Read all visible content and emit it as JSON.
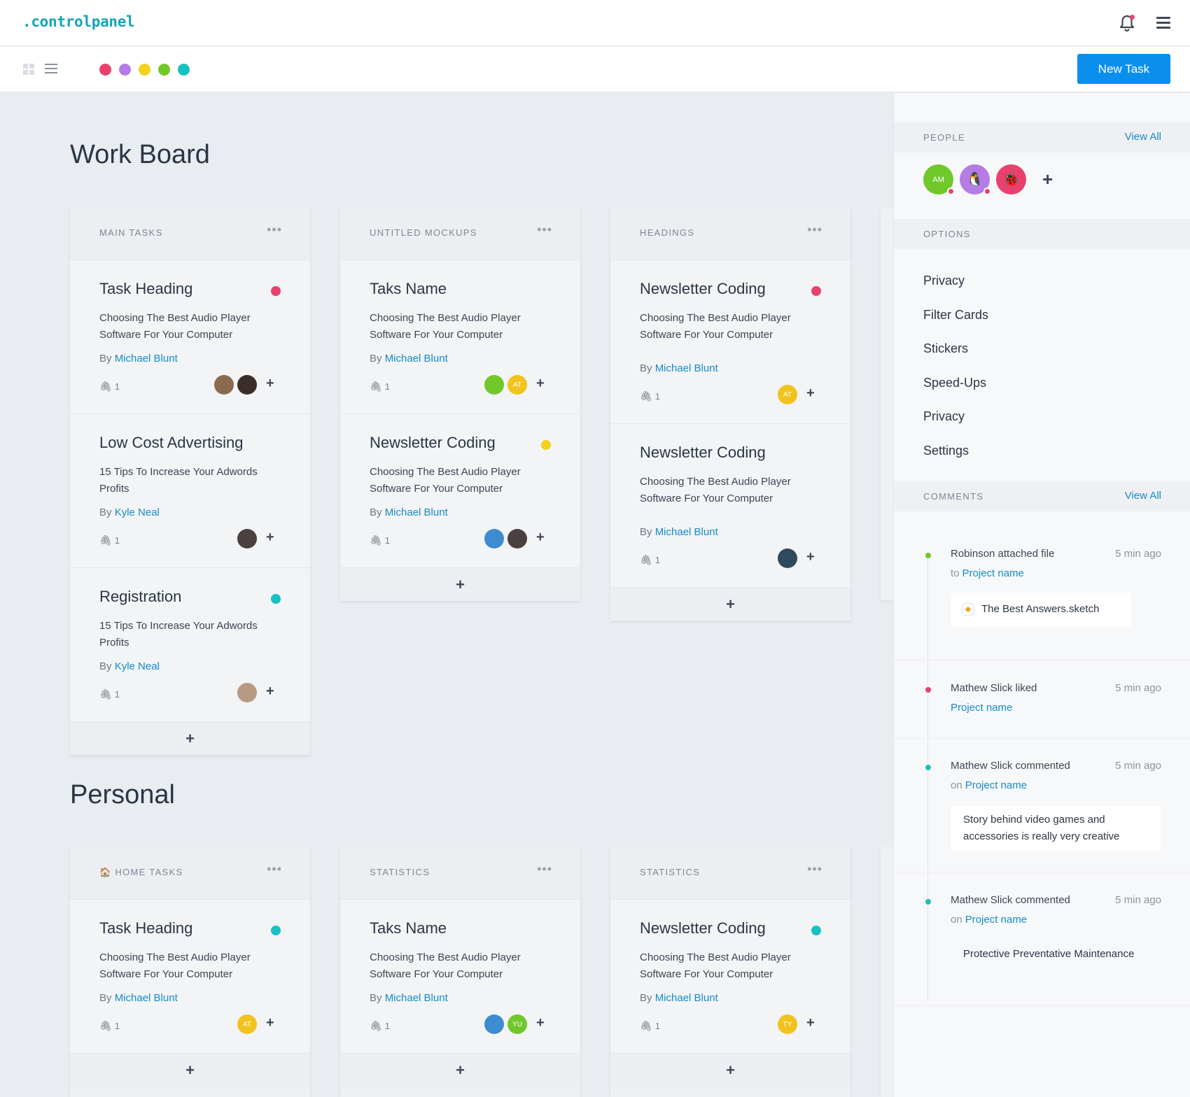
{
  "app": {
    "logo": ".controlpanel"
  },
  "toolbar": {
    "new_task_label": "New Task",
    "color_filters": [
      "#e8416d",
      "#b57be6",
      "#f2d21c",
      "#70c82a",
      "#18c1c1"
    ]
  },
  "sections": {
    "work_board_title": "Work Board",
    "personal_title": "Personal"
  },
  "work_board": [
    {
      "title": "MAIN TASKS",
      "cards": [
        {
          "title": "Task Heading",
          "dot": "#e8416d",
          "desc": "Choosing The Best Audio Player Software For Your Computer",
          "by": "By",
          "author": "Michael Blunt",
          "attachments": "1"
        },
        {
          "title": "Low Cost Advertising",
          "dot": "",
          "desc": "15 Tips To Increase Your Adwords Profits",
          "by": "By",
          "author": "Kyle Neal",
          "attachments": "1"
        },
        {
          "title": "Registration",
          "dot": "#18c1c1",
          "desc": "15 Tips To Increase Your Adwords Profits",
          "by": "By",
          "author": "Kyle Neal",
          "attachments": "1"
        }
      ]
    },
    {
      "title": "UNTITLED MOCKUPS",
      "cards": [
        {
          "title": "Taks Name",
          "dot": "",
          "desc": "Choosing The Best Audio Player Software For Your Computer",
          "by": "By",
          "author": "Michael Blunt",
          "attachments": "1",
          "avatar_text": "AT"
        },
        {
          "title": "Newsletter Coding",
          "dot": "#f2d21c",
          "desc": "Choosing The Best Audio Player Software For Your Computer",
          "by": "By",
          "author": "Michael Blunt",
          "attachments": "1"
        }
      ]
    },
    {
      "title": "HEADINGS",
      "cards": [
        {
          "title": "Newsletter Coding",
          "dot": "#e8416d",
          "desc": "Choosing The Best Audio Player Software For Your Computer",
          "by": "By",
          "author": "Michael Blunt",
          "attachments": "1",
          "avatar_text": "AT"
        },
        {
          "title": "Newsletter Coding",
          "dot": "",
          "desc": "Choosing The Best Audio Player Software For Your Computer",
          "by": "By",
          "author": "Michael Blunt",
          "attachments": "1"
        }
      ]
    }
  ],
  "personal": [
    {
      "title": "HOME TASKS",
      "card": {
        "title": "Task Heading",
        "dot": "#18c1c1",
        "desc": "Choosing The Best Audio Player Software For Your Computer",
        "by": "By",
        "author": "Michael Blunt",
        "attachments": "1",
        "avatar_text": "AT"
      }
    },
    {
      "title": "STATISTICS",
      "card": {
        "title": "Taks Name",
        "dot": "",
        "desc": "Choosing The Best Audio Player Software For Your Computer",
        "by": "By",
        "author": "Michael Blunt",
        "attachments": "1",
        "avatar_text": "YU"
      }
    },
    {
      "title": "STATISTICS",
      "card": {
        "title": "Newsletter Coding",
        "dot": "#18c1c1",
        "desc": "Choosing The Best Audio Player Software For Your Computer",
        "by": "By",
        "author": "Michael Blunt",
        "attachments": "1",
        "avatar_text": "TY"
      }
    }
  ],
  "sidebar": {
    "people_label": "PEOPLE",
    "people_view_all": "View All",
    "people": [
      {
        "initials": "AM"
      }
    ],
    "options_label": "OPTIONS",
    "options": [
      "Privacy",
      "Filter Cards",
      "Stickers",
      "Speed-Ups",
      "Privacy",
      "Settings"
    ],
    "comments_label": "COMMENTS",
    "comments_view_all": "View All",
    "comments": [
      {
        "who": "Robinson attached file",
        "ago": "5 min ago",
        "prefix": "to",
        "project": "Project name",
        "attachment": "The Best Answers.sketch",
        "dot": "#70c82a"
      },
      {
        "who": "Mathew Slick liked",
        "ago": "5 min ago",
        "prefix": "",
        "project": "Project name",
        "dot": "#e8416d"
      },
      {
        "who": "Mathew Slick commented",
        "ago": "5 min ago",
        "prefix": "on",
        "project": "Project name",
        "text": "Story behind video games and accessories is really very creative",
        "dot": "#18c1c1"
      },
      {
        "who": "Mathew Slick commented",
        "ago": "5 min ago",
        "prefix": "on",
        "project": "Project name",
        "text": "Protective Preventative Maintenance",
        "dot": "#18c1c1"
      }
    ]
  }
}
